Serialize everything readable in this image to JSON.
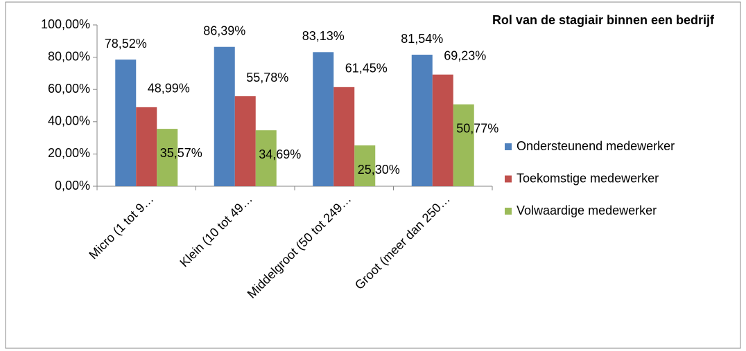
{
  "chart_data": {
    "type": "bar",
    "title": "Rol van de stagiair binnen een bedrijf",
    "categories": [
      "Micro (1 tot 9…",
      "Klein (10 tot 49…",
      "Middelgroot (50 tot 249…",
      "Groot (meer dan 250…"
    ],
    "series": [
      {
        "name": "Ondersteunend medewerker",
        "color": "#4f81bd",
        "values": [
          78.52,
          86.39,
          83.13,
          81.54
        ],
        "value_labels": [
          "78,52%",
          "86,39%",
          "83,13%",
          "81,54%"
        ]
      },
      {
        "name": "Toekomstige medewerker",
        "color": "#c0504d",
        "values": [
          48.99,
          55.78,
          61.45,
          69.23
        ],
        "value_labels": [
          "48,99%",
          "55,78%",
          "61,45%",
          "69,23%"
        ]
      },
      {
        "name": "Volwaardige medewerker",
        "color": "#9bbb59",
        "values": [
          35.57,
          34.69,
          25.3,
          50.77
        ],
        "value_labels": [
          "35,57%",
          "34,69%",
          "25,30%",
          "50,77%"
        ]
      }
    ],
    "ylim": [
      0,
      100
    ],
    "yticks": [
      {
        "value": 0,
        "label": "0,00%"
      },
      {
        "value": 20,
        "label": "20,00%"
      },
      {
        "value": 40,
        "label": "40,00%"
      },
      {
        "value": 60,
        "label": "60,00%"
      },
      {
        "value": 80,
        "label": "80,00%"
      },
      {
        "value": 100,
        "label": "100,00%"
      }
    ],
    "legend": "right"
  }
}
